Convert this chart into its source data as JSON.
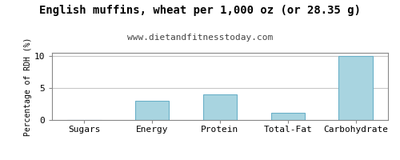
{
  "title": "English muffins, wheat per 1,000 oz (or 28.35 g)",
  "subtitle": "www.dietandfitnesstoday.com",
  "categories": [
    "Sugars",
    "Energy",
    "Protein",
    "Total-Fat",
    "Carbohydrate"
  ],
  "values": [
    0,
    3.0,
    4.0,
    1.1,
    10.0
  ],
  "bar_color": "#a8d4e0",
  "bar_edge_color": "#6ab0c8",
  "ylabel": "Percentage of RDH (%)",
  "ylim": [
    0,
    10.5
  ],
  "yticks": [
    0,
    5,
    10
  ],
  "background_color": "#ffffff",
  "title_fontsize": 10,
  "subtitle_fontsize": 8,
  "ylabel_fontsize": 7,
  "tick_fontsize": 8,
  "grid_color": "#c8c8c8",
  "border_color": "#888888",
  "title_color": "#000000",
  "subtitle_color": "#444444"
}
